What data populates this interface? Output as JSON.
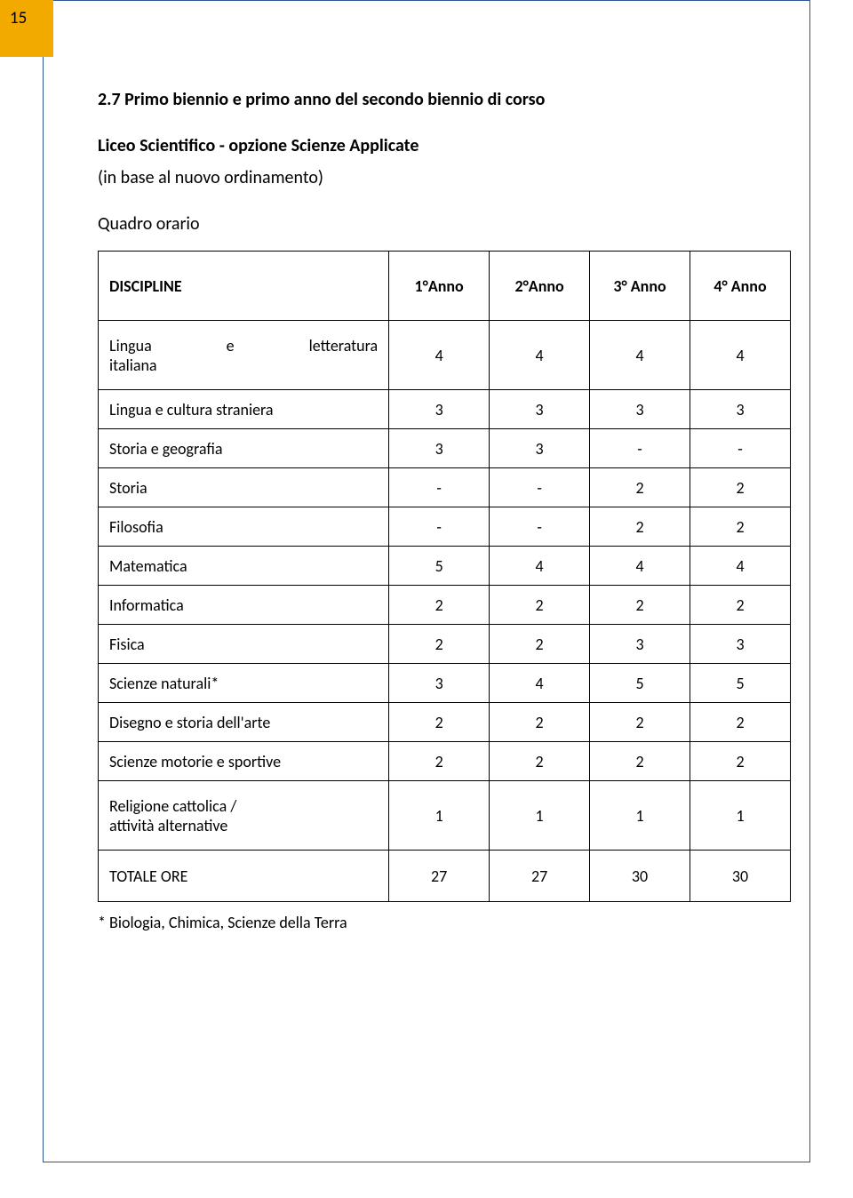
{
  "page_number": "15",
  "heading": "2.7 Primo biennio e primo anno del secondo biennio di corso",
  "subtitle": "Liceo Scientifico - opzione Scienze Applicate",
  "subtext": "(in base al nuovo ordinamento)",
  "orario_label": "Quadro orario",
  "table": {
    "header": [
      "DISCIPLINE",
      "1°Anno",
      "2°Anno",
      "3° Anno",
      "4° Anno"
    ],
    "rows": [
      {
        "label_lines": [
          "Lingua    e    letteratura",
          "italiana"
        ],
        "values": [
          "4",
          "4",
          "4",
          "4"
        ],
        "tall": true,
        "justified": true
      },
      {
        "label": "Lingua e cultura straniera",
        "values": [
          "3",
          "3",
          "3",
          "3"
        ]
      },
      {
        "label": "Storia e geografia",
        "values": [
          "3",
          "3",
          "-",
          "-"
        ]
      },
      {
        "label": "Storia",
        "values": [
          "-",
          "-",
          "2",
          "2"
        ]
      },
      {
        "label": "Filosofia",
        "values": [
          "-",
          "-",
          "2",
          "2"
        ]
      },
      {
        "label": "Matematica",
        "values": [
          "5",
          "4",
          "4",
          "4"
        ]
      },
      {
        "label": "Informatica",
        "values": [
          "2",
          "2",
          "2",
          "2"
        ]
      },
      {
        "label": "Fisica",
        "values": [
          "2",
          "2",
          "3",
          "3"
        ]
      },
      {
        "label": "Scienze naturali*",
        "values": [
          "3",
          "4",
          "5",
          "5"
        ]
      },
      {
        "label": "Disegno e storia dell'arte",
        "values": [
          "2",
          "2",
          "2",
          "2"
        ]
      },
      {
        "label": "Scienze motorie e sportive",
        "values": [
          "2",
          "2",
          "2",
          "2"
        ]
      },
      {
        "label_lines": [
          "Religione cattolica /",
          "attività alternative"
        ],
        "values": [
          "1",
          "1",
          "1",
          "1"
        ],
        "tall": true
      },
      {
        "label": "TOTALE ORE",
        "values": [
          "27",
          "27",
          "30",
          "30"
        ],
        "med": true
      }
    ]
  },
  "footnote": "* Biologia, Chimica, Scienze della Terra",
  "colors": {
    "border": "#2f5496",
    "accent_box": "#f2a900",
    "text": "#000000",
    "table_border": "#000000",
    "background": "#ffffff"
  }
}
